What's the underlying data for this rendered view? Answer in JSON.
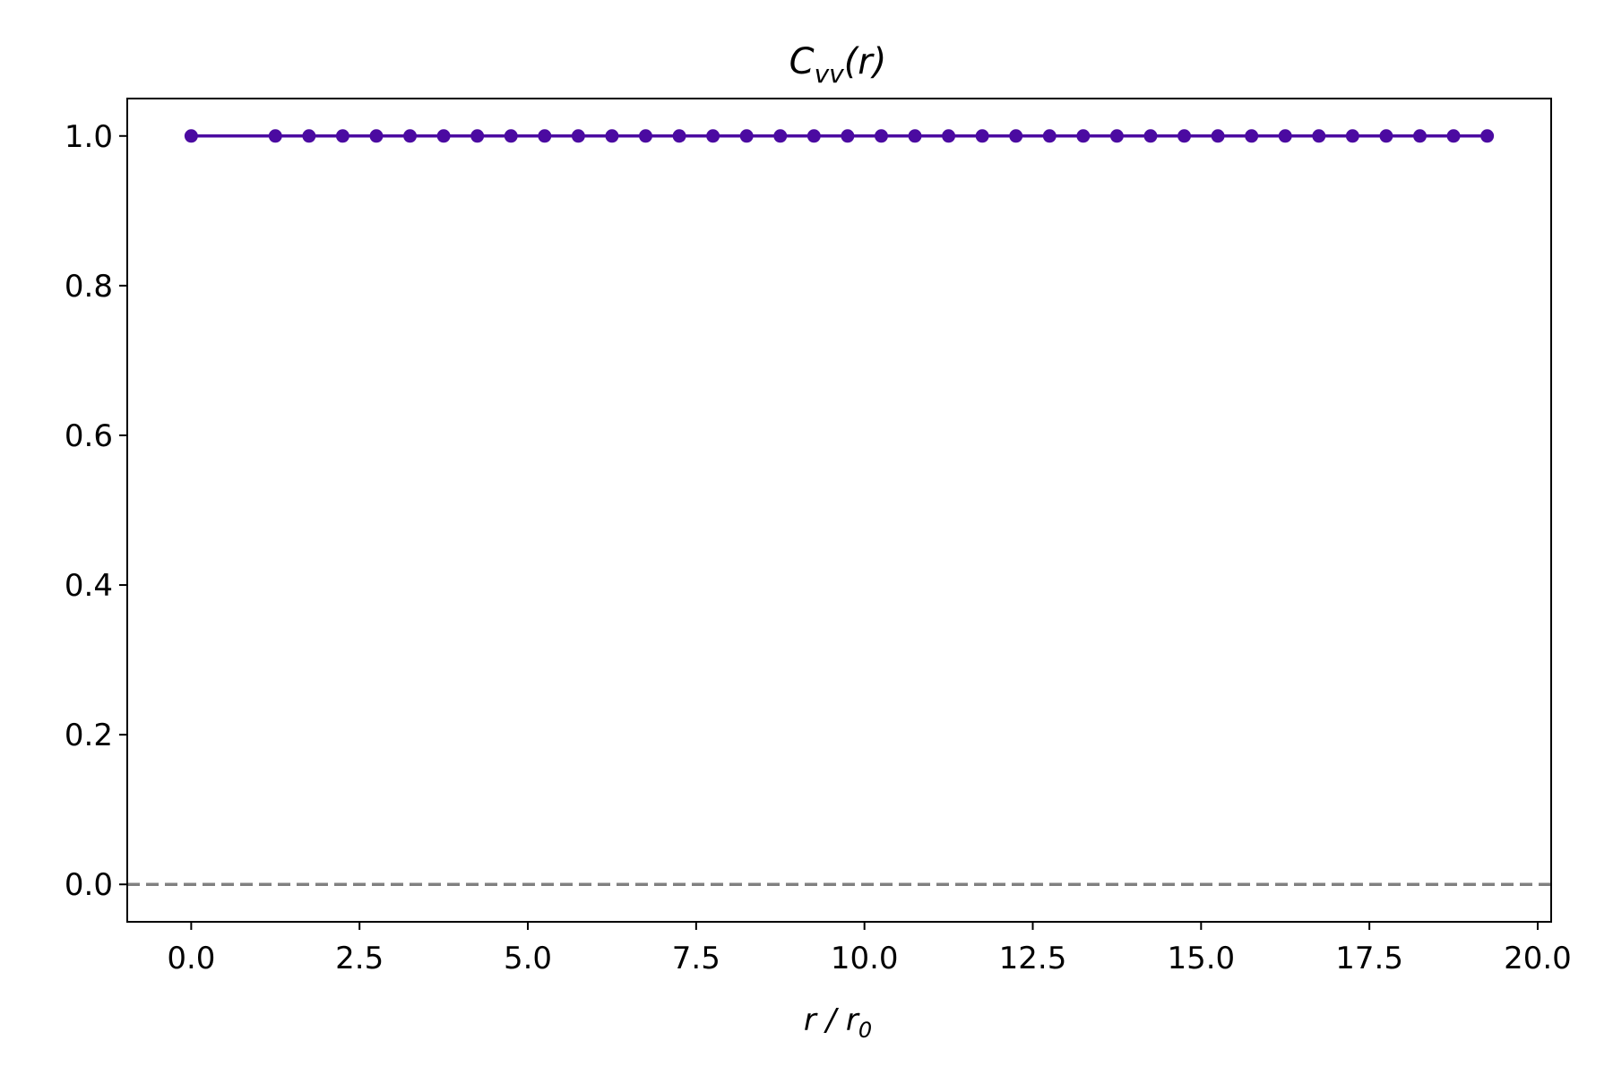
{
  "chart_data": {
    "type": "line",
    "title": {
      "main": "C",
      "sub": "vv",
      "rest": "(r)"
    },
    "xlabel": {
      "main": "r / r",
      "sub": "0"
    },
    "ylabel": "",
    "xlim": [
      -0.95,
      20.2
    ],
    "ylim": [
      -0.05,
      1.05
    ],
    "xticks": [
      "0.0",
      "2.5",
      "5.0",
      "7.5",
      "10.0",
      "12.5",
      "15.0",
      "17.5",
      "20.0"
    ],
    "yticks": [
      "0.0",
      "0.2",
      "0.4",
      "0.6",
      "0.8",
      "1.0"
    ],
    "grid": false,
    "legend": "none",
    "series": [
      {
        "color": "#4b0aa1",
        "x": [
          0.0,
          1.25,
          1.75,
          2.25,
          2.75,
          3.25,
          3.75,
          4.25,
          4.75,
          5.25,
          5.75,
          6.25,
          6.75,
          7.25,
          7.75,
          8.25,
          8.75,
          9.25,
          9.75,
          10.25,
          10.75,
          11.25,
          11.75,
          12.25,
          12.75,
          13.25,
          13.75,
          14.25,
          14.75,
          15.25,
          15.75,
          16.25,
          16.75,
          17.25,
          17.75,
          18.25,
          18.75,
          19.25
        ],
        "y": [
          1,
          1,
          1,
          1,
          1,
          1,
          1,
          1,
          1,
          1,
          1,
          1,
          1,
          1,
          1,
          1,
          1,
          1,
          1,
          1,
          1,
          1,
          1,
          1,
          1,
          1,
          1,
          1,
          1,
          1,
          1,
          1,
          1,
          1,
          1,
          1,
          1,
          1
        ]
      }
    ],
    "reference_line": {
      "y": 0.0,
      "color": "#808080",
      "style": "dashed"
    }
  }
}
